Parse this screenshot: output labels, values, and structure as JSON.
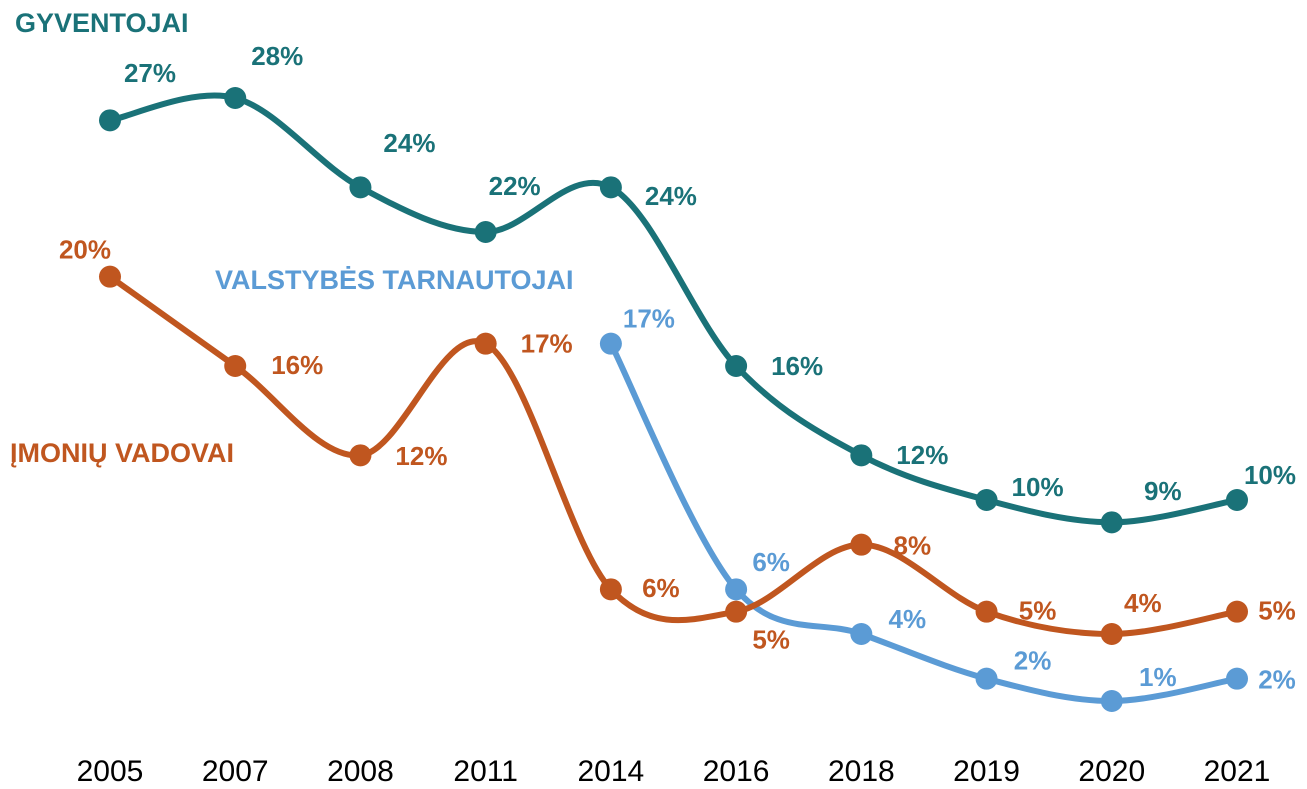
{
  "chart_data": {
    "type": "line",
    "categories": [
      "2005",
      "2007",
      "2008",
      "2011",
      "2014",
      "2016",
      "2018",
      "2019",
      "2020",
      "2021"
    ],
    "series": [
      {
        "name": "GYVENTOJAI",
        "color": "#1a7278",
        "values": [
          27,
          28,
          24,
          22,
          24,
          16,
          12,
          10,
          9,
          10
        ],
        "value_labels": [
          "27%",
          "28%",
          "24%",
          "22%",
          "24%",
          "16%",
          "12%",
          "10%",
          "9%",
          "10%"
        ]
      },
      {
        "name": "VALSTYBĖS TARNAUTOJAI",
        "color": "#5b9bd5",
        "values": [
          null,
          null,
          null,
          null,
          17,
          6,
          4,
          2,
          1,
          2
        ],
        "value_labels": [
          null,
          null,
          null,
          null,
          "17%",
          "6%",
          "4%",
          "2%",
          "1%",
          "2%"
        ]
      },
      {
        "name": "ĮMONIŲ VADOVAI",
        "color": "#c0561f",
        "values": [
          20,
          16,
          12,
          17,
          6,
          5,
          8,
          5,
          4,
          5
        ],
        "value_labels": [
          "20%",
          "16%",
          "12%",
          "17%",
          "6%",
          "5%",
          "8%",
          "5%",
          "4%",
          "5%"
        ]
      }
    ]
  }
}
